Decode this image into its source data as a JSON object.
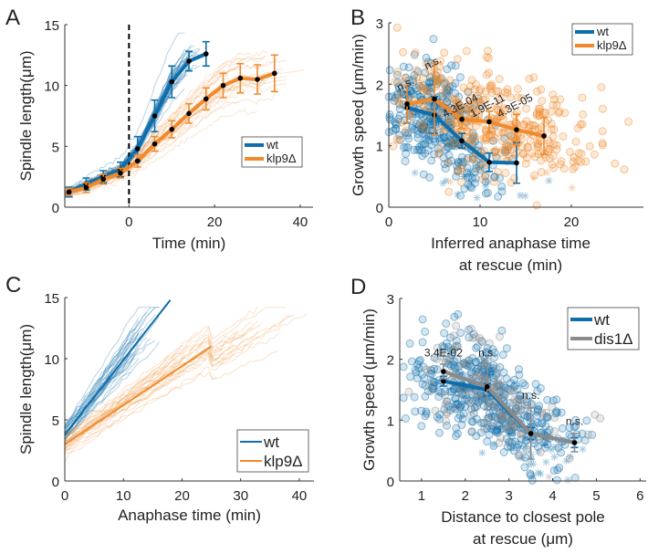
{
  "colors": {
    "wt": "#0f6eaa",
    "klp9": "#f08a2c",
    "dis1": "#8a8a8a",
    "mean_point": "#000000"
  },
  "chart_data": [
    {
      "panel": "A",
      "type": "line",
      "xlabel": "Time (min)",
      "ylabel": "Spindle length(μm)",
      "xlim": [
        -15,
        43
      ],
      "ylim": [
        0,
        15
      ],
      "xticks": [
        "0",
        "20",
        "40"
      ],
      "xtick_values": [
        0,
        20,
        40
      ],
      "yticks": [
        "0",
        "5",
        "10",
        "15"
      ],
      "ytick_values": [
        0,
        5,
        10,
        15
      ],
      "reference_line_x": 0,
      "legend": {
        "position": "right",
        "entries": [
          "wt",
          "klp9Δ"
        ]
      },
      "series": [
        {
          "name": "wt",
          "color_key": "wt",
          "x": [
            -14,
            -10,
            -6,
            -2,
            2,
            6,
            10,
            14,
            18
          ],
          "y": [
            1.25,
            1.9,
            2.5,
            3.1,
            4.8,
            7.5,
            10.3,
            12.0,
            12.6
          ],
          "err": [
            0.4,
            0.5,
            0.5,
            0.6,
            1.0,
            1.3,
            1.3,
            0.8,
            1.0
          ]
        },
        {
          "name": "klp9Δ",
          "color_key": "klp9",
          "x": [
            -14,
            -10,
            -6,
            -2,
            2,
            6,
            10,
            14,
            18,
            22,
            26,
            30,
            34
          ],
          "y": [
            1.25,
            1.6,
            2.3,
            2.8,
            3.8,
            5.2,
            6.4,
            7.7,
            8.9,
            10.0,
            10.6,
            10.5,
            11.0
          ],
          "err": [
            0.3,
            0.4,
            0.4,
            0.4,
            0.5,
            0.6,
            0.7,
            0.8,
            0.9,
            1.0,
            1.2,
            1.2,
            1.5
          ]
        }
      ]
    },
    {
      "panel": "B",
      "type": "scatter",
      "xlabel": [
        "Inferred anaphase time",
        "at rescue (min)"
      ],
      "ylabel": "Growth speed (μm/min)",
      "xlim": [
        0,
        27.9
      ],
      "ylim": [
        0,
        3
      ],
      "xticks": [
        "0",
        "10",
        "20"
      ],
      "xtick_values": [
        0,
        10,
        20
      ],
      "yticks": [
        "0",
        "1",
        "2",
        "3"
      ],
      "ytick_values": [
        0,
        1,
        2,
        3
      ],
      "legend": {
        "position": "top-right",
        "entries": [
          "wt",
          "klp9Δ"
        ]
      },
      "series": [
        {
          "name": "wt",
          "color_key": "wt",
          "x": [
            2,
            5,
            8,
            11,
            14
          ],
          "y": [
            1.62,
            1.5,
            1.08,
            0.73,
            0.72
          ],
          "err": [
            0.25,
            0.3,
            0.12,
            0.15,
            0.33
          ]
        },
        {
          "name": "klp9Δ",
          "color_key": "klp9",
          "x": [
            2,
            5,
            8,
            11,
            14,
            17
          ],
          "y": [
            1.68,
            1.76,
            1.43,
            1.39,
            1.26,
            1.16
          ],
          "err": [
            0.3,
            0.58,
            0.15,
            0.17,
            0.25,
            0.3
          ]
        }
      ],
      "annotations": [
        {
          "x": 2,
          "y": 1.95,
          "text": "n.s."
        },
        {
          "x": 5,
          "y": 2.3,
          "text": "n.s."
        },
        {
          "x": 8,
          "y": 1.6,
          "text": "4.3E-04"
        },
        {
          "x": 11,
          "y": 1.6,
          "text": "1.9E-11"
        },
        {
          "x": 14,
          "y": 1.6,
          "text": "4.3E-05"
        }
      ]
    },
    {
      "panel": "C",
      "type": "line",
      "xlabel": "Anaphase time (min)",
      "ylabel": "Spindle length(μm)",
      "xlim": [
        0,
        42.5
      ],
      "ylim": [
        0,
        15
      ],
      "xticks": [
        "0",
        "10",
        "20",
        "30",
        "40"
      ],
      "xtick_values": [
        0,
        10,
        20,
        30,
        40
      ],
      "yticks": [
        "0",
        "5",
        "10",
        "15"
      ],
      "ytick_values": [
        0,
        5,
        10,
        15
      ],
      "legend": {
        "position": "bottom-right",
        "entries": [
          "wt",
          "klp9Δ"
        ]
      },
      "series": [
        {
          "name": "wt",
          "color_key": "wt",
          "x": [
            0,
            18
          ],
          "y": [
            3.8,
            14.8
          ]
        },
        {
          "name": "klp9Δ",
          "color_key": "klp9",
          "x": [
            0,
            25
          ],
          "y": [
            3.0,
            11.0
          ]
        }
      ]
    },
    {
      "panel": "D",
      "type": "scatter",
      "xlabel": [
        "Distance to closest pole",
        "at rescue (μm)"
      ],
      "ylabel": "Growth speed (μm/min)",
      "xlim": [
        0.5,
        6.14
      ],
      "ylim": [
        0,
        3
      ],
      "xticks": [
        "1",
        "2",
        "3",
        "4",
        "5",
        "6"
      ],
      "xtick_values": [
        1,
        2,
        3,
        4,
        5,
        6
      ],
      "yticks": [
        "0",
        "1",
        "2",
        "3"
      ],
      "ytick_values": [
        0,
        1,
        2,
        3
      ],
      "legend": {
        "position": "top-right",
        "entries": [
          "wt",
          "dis1Δ"
        ]
      },
      "series": [
        {
          "name": "wt",
          "color_key": "wt",
          "x": [
            1.5,
            2.5,
            3.5,
            4.5
          ],
          "y": [
            1.64,
            1.5,
            0.78,
            0.63
          ],
          "err": [
            0.08,
            0.1,
            0.1,
            0.08
          ]
        },
        {
          "name": "dis1Δ",
          "color_key": "dis1",
          "x": [
            1.5,
            2.5,
            3.5,
            4.5
          ],
          "y": [
            1.8,
            1.55,
            0.78,
            0.63
          ],
          "err": [
            0.12,
            0.38,
            0.42,
            0.15
          ]
        }
      ],
      "annotations": [
        {
          "x": 1.5,
          "y": 2.05,
          "text": "3.4E-02"
        },
        {
          "x": 2.5,
          "y": 2.05,
          "text": "n.s."
        },
        {
          "x": 3.5,
          "y": 1.35,
          "text": "n.s."
        },
        {
          "x": 4.5,
          "y": 0.92,
          "text": "n.s."
        }
      ]
    }
  ]
}
